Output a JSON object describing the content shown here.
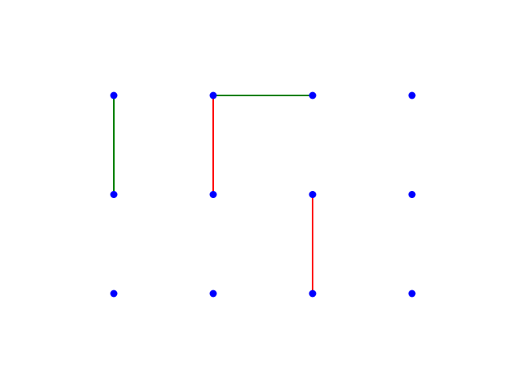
{
  "board": {
    "columns": 4,
    "rows": 3,
    "dot_color": "#0000ff",
    "background": "#ffffff",
    "player_colors": {
      "green": "#008000",
      "red": "#ff0000"
    },
    "edges": [
      {
        "from": [
          0,
          0
        ],
        "to": [
          0,
          1
        ],
        "player": "green"
      },
      {
        "from": [
          1,
          0
        ],
        "to": [
          2,
          0
        ],
        "player": "green"
      },
      {
        "from": [
          1,
          0
        ],
        "to": [
          1,
          1
        ],
        "player": "red"
      },
      {
        "from": [
          2,
          1
        ],
        "to": [
          2,
          2
        ],
        "player": "red"
      }
    ]
  }
}
